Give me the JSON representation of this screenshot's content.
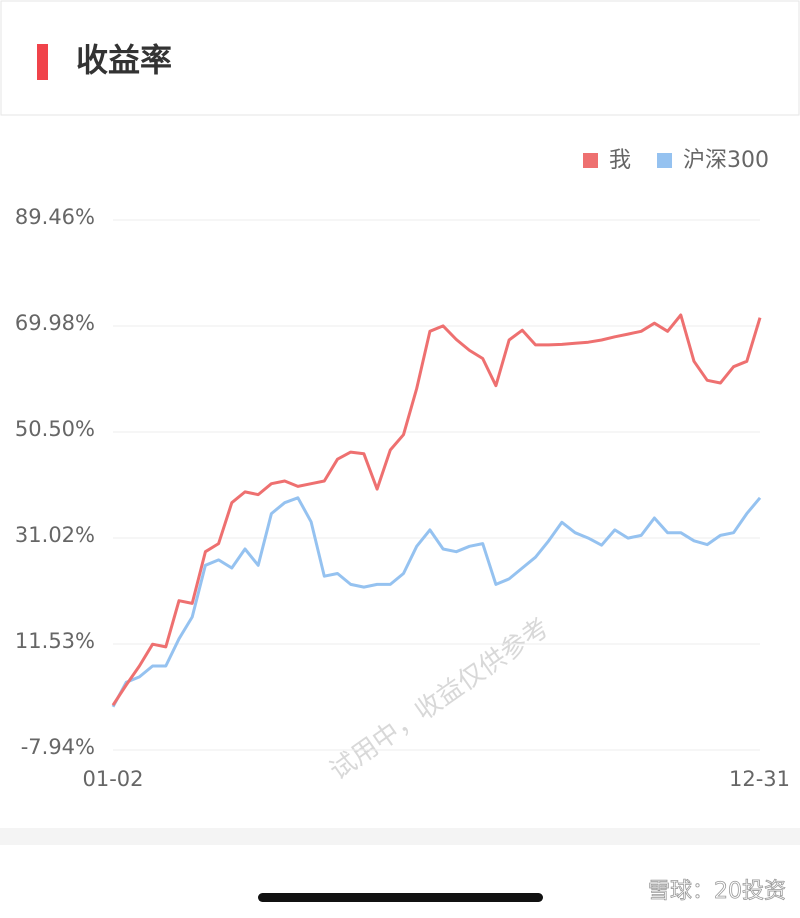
{
  "header": {
    "title": "收益率"
  },
  "watermark": "试用中，收益仅供参考",
  "footer": "雪球：20投资",
  "chart_data": {
    "type": "line",
    "categories": [
      "01-02",
      null,
      null,
      null,
      null,
      null,
      null,
      null,
      null,
      null,
      null,
      null,
      null,
      null,
      null,
      null,
      null,
      null,
      null,
      null,
      null,
      null,
      null,
      null,
      null,
      null,
      null,
      null,
      null,
      null,
      null,
      null,
      null,
      null,
      null,
      null,
      null,
      null,
      null,
      null,
      null,
      null,
      null,
      null,
      null,
      null,
      null,
      null,
      null,
      "12-31"
    ],
    "series": [
      {
        "name": "我",
        "color": "#ee7070",
        "values": [
          0.3,
          4.0,
          7.5,
          11.5,
          11.0,
          19.5,
          19.0,
          28.5,
          30.0,
          37.5,
          39.5,
          39.0,
          41.0,
          41.5,
          40.5,
          41.0,
          41.5,
          45.5,
          46.8,
          46.5,
          40.0,
          47.2,
          50.0,
          58.5,
          69.0,
          70.0,
          67.5,
          65.5,
          64.0,
          59.0,
          67.4,
          69.2,
          66.5,
          66.5,
          66.6,
          66.8,
          67.0,
          67.4,
          68.0,
          68.5,
          69.0,
          70.5,
          69.0,
          72.0,
          63.5,
          60.0,
          59.5,
          62.5,
          63.5,
          71.5
        ]
      },
      {
        "name": "沪深300",
        "color": "#95c2f0",
        "values": [
          0,
          4.5,
          5.5,
          7.5,
          7.5,
          12.5,
          16.5,
          26.0,
          27.0,
          25.5,
          29.0,
          26.0,
          35.5,
          37.5,
          38.4,
          34.0,
          24.0,
          24.5,
          22.5,
          22.0,
          22.5,
          22.5,
          24.5,
          29.5,
          32.5,
          29.0,
          28.5,
          29.5,
          30.0,
          22.5,
          23.5,
          25.5,
          27.5,
          30.5,
          33.9,
          32.0,
          31.0,
          29.7,
          32.5,
          31.0,
          31.5,
          34.7,
          32.0,
          32.0,
          30.5,
          29.8,
          31.5,
          32.0,
          35.5,
          38.4
        ]
      }
    ],
    "ylim": [
      -7.94,
      89.46
    ],
    "yticks": [
      {
        "value": -7.94,
        "label": "-7.94%"
      },
      {
        "value": 11.53,
        "label": "11.53%"
      },
      {
        "value": 31.02,
        "label": "31.02%"
      },
      {
        "value": 50.5,
        "label": "50.50%"
      },
      {
        "value": 69.98,
        "label": "69.98%"
      },
      {
        "value": 89.46,
        "label": "89.46%"
      }
    ],
    "grid": true,
    "legend": "top-right"
  }
}
